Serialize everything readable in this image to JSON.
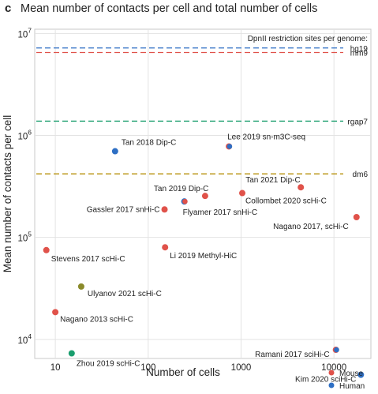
{
  "panel_label": "c",
  "chart_data": {
    "type": "scatter",
    "title": "Mean number of contacts per cell and total number of cells",
    "xlabel": "Number of cells",
    "ylabel": "Mean number of contacts per cell",
    "xscale": "log",
    "yscale": "log",
    "xlim": [
      6,
      25000
    ],
    "ylim": [
      6500,
      11000000
    ],
    "grid": true,
    "x_ticks": [
      {
        "value": 10,
        "label": "10"
      },
      {
        "value": 100,
        "label": "100"
      },
      {
        "value": 1000,
        "label": "1000"
      },
      {
        "value": 10000,
        "label": "10000"
      }
    ],
    "y_ticks": [
      {
        "value": 10000,
        "base": "10",
        "exp": "4"
      },
      {
        "value": 100000,
        "base": "10",
        "exp": "5"
      },
      {
        "value": 1000000,
        "base": "10",
        "exp": "6"
      },
      {
        "value": 10000000,
        "base": "10",
        "exp": "7"
      }
    ],
    "reference_title": "DpnII restriction sites per genome:",
    "reference_lines": [
      {
        "label": "hg19",
        "value": 7200000,
        "color": "#2e6fc4"
      },
      {
        "label": "mm9",
        "value": 6500000,
        "color": "#e0524a"
      },
      {
        "label": "rgap7",
        "value": 1380000,
        "color": "#1a9e6e"
      },
      {
        "label": "dm6",
        "value": 420000,
        "color": "#b8920e"
      }
    ],
    "legend_placement": "bottom-right",
    "legend": [
      {
        "label": "Mouse",
        "color": "#e0524a"
      },
      {
        "label": "Human",
        "color": "#2e6fc4"
      }
    ],
    "points": [
      {
        "label": "Tan 2018 Dip-C",
        "x": 44,
        "y": 700000,
        "color": "#2e6fc4"
      },
      {
        "label": "Lee 2019 sn-m3C-seq",
        "x": 740,
        "y": 780000,
        "color": "#2e6fc4",
        "edge": "#e0524a"
      },
      {
        "label": "Tan 2019 Dip-C",
        "x": 410,
        "y": 255000,
        "color": "#e0524a"
      },
      {
        "label": "Flyamer 2017 snHi-C",
        "x": 245,
        "y": 225000,
        "color": "#e0524a",
        "edge": "#2e6fc4"
      },
      {
        "label": "Gassler 2017 snHi-C",
        "x": 150,
        "y": 188000,
        "color": "#e0524a"
      },
      {
        "label": "Tan 2021 Dip-C",
        "x": 4400,
        "y": 310000,
        "color": "#e0524a"
      },
      {
        "label": "Collombet 2020 scHi-C",
        "x": 1030,
        "y": 272000,
        "color": "#e0524a"
      },
      {
        "label": "Nagano 2017, scHi-C",
        "x": 17500,
        "y": 158000,
        "color": "#e0524a"
      },
      {
        "label": "Stevens 2017 scHi-C",
        "x": 8,
        "y": 75000,
        "color": "#e0524a"
      },
      {
        "label": "Li 2019 Methyl-HiC",
        "x": 152,
        "y": 80000,
        "color": "#e0524a"
      },
      {
        "label": "Ulyanov 2021 scHi-C",
        "x": 19,
        "y": 33000,
        "color": "#8a8a2a"
      },
      {
        "label": "Nagano 2013 scHi-C",
        "x": 10,
        "y": 18500,
        "color": "#e0524a"
      },
      {
        "label": "Zhou 2019 scHi-C",
        "x": 15,
        "y": 7300,
        "color": "#1a9e6e"
      },
      {
        "label": "Ramani 2017 sciHi-C",
        "x": 10500,
        "y": 7900,
        "color": "#2e6fc4",
        "edge": "#e0524a"
      },
      {
        "label": "Kim 2020 sciHi-C",
        "x": 19500,
        "y": 4500,
        "color": "#2e6fc4"
      }
    ]
  }
}
